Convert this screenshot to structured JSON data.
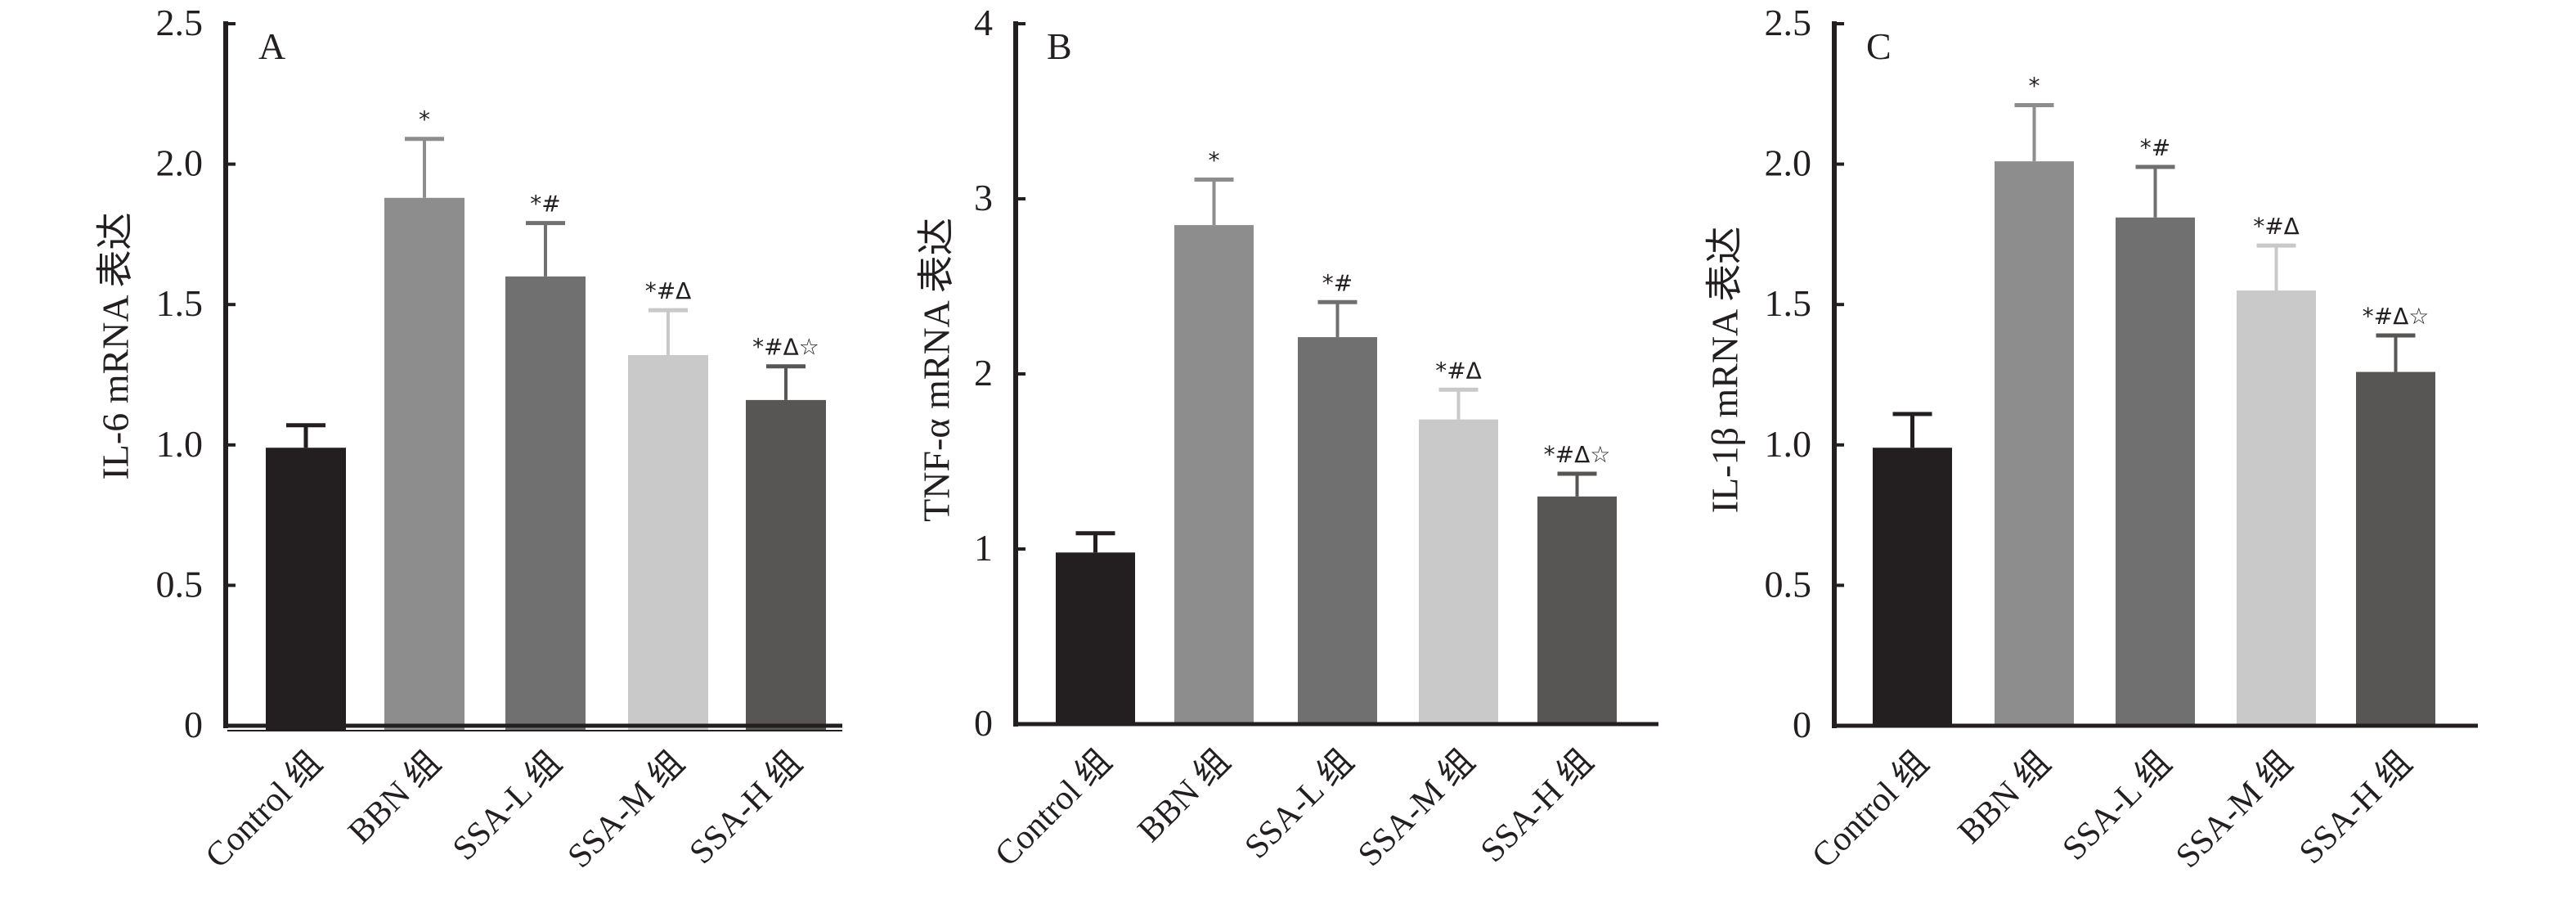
{
  "figure": {
    "panels_count": 3
  },
  "chart_data": [
    {
      "type": "bar",
      "panel": "A",
      "title": "",
      "xlabel": "",
      "ylabel": "IL-6 mRNA 表达",
      "ylim": [
        0,
        2.5
      ],
      "yticks": [
        0,
        0.5,
        1.0,
        1.5,
        2.0,
        2.5
      ],
      "ytick_labels": [
        "0",
        "0.5",
        "1.0",
        "1.5",
        "2.0",
        "2.5"
      ],
      "grid": false,
      "categories": [
        "Control 组",
        "BBN 组",
        "SSA-L 组",
        "SSA-M 组",
        "SSA-H 组"
      ],
      "values": [
        0.99,
        1.88,
        1.6,
        1.32,
        1.16
      ],
      "error_upper": [
        1.07,
        2.09,
        1.79,
        1.48,
        1.28
      ],
      "annotations": [
        "",
        "*",
        "*#",
        "*#Δ",
        "*#Δ☆"
      ],
      "colors": [
        "#231f20",
        "#8e8d8e",
        "#717071",
        "#c9c9c9",
        "#575655"
      ]
    },
    {
      "type": "bar",
      "panel": "B",
      "title": "",
      "xlabel": "",
      "ylabel": "TNF-α mRNA 表达",
      "ylim": [
        0,
        4
      ],
      "yticks": [
        0,
        1,
        2,
        3,
        4
      ],
      "ytick_labels": [
        "0",
        "1",
        "2",
        "3",
        "4"
      ],
      "grid": false,
      "categories": [
        "Control 组",
        "BBN 组",
        "SSA-L 组",
        "SSA-M 组",
        "SSA-H 组"
      ],
      "values": [
        0.98,
        2.85,
        2.21,
        1.74,
        1.3
      ],
      "error_upper": [
        1.09,
        3.11,
        2.41,
        1.91,
        1.43
      ],
      "annotations": [
        "",
        "*",
        "*#",
        "*#Δ",
        "*#Δ☆"
      ],
      "colors": [
        "#231f20",
        "#8e8d8e",
        "#717071",
        "#c9c9c9",
        "#575655"
      ]
    },
    {
      "type": "bar",
      "panel": "C",
      "title": "",
      "xlabel": "",
      "ylabel": "IL-1β mRNA 表达",
      "ylim": [
        0,
        2.5
      ],
      "yticks": [
        0,
        0.5,
        1.0,
        1.5,
        2.0,
        2.5
      ],
      "ytick_labels": [
        "0",
        "0.5",
        "1.0",
        "1.5",
        "2.0",
        "2.5"
      ],
      "grid": false,
      "categories": [
        "Control 组",
        "BBN 组",
        "SSA-L 组",
        "SSA-M 组",
        "SSA-H 组"
      ],
      "values": [
        0.99,
        2.01,
        1.81,
        1.55,
        1.26
      ],
      "error_upper": [
        1.11,
        2.21,
        1.99,
        1.71,
        1.39
      ],
      "annotations": [
        "",
        "*",
        "*#",
        "*#Δ",
        "*#Δ☆"
      ],
      "colors": [
        "#231f20",
        "#8e8d8e",
        "#717071",
        "#c9c9c9",
        "#575655"
      ]
    }
  ]
}
